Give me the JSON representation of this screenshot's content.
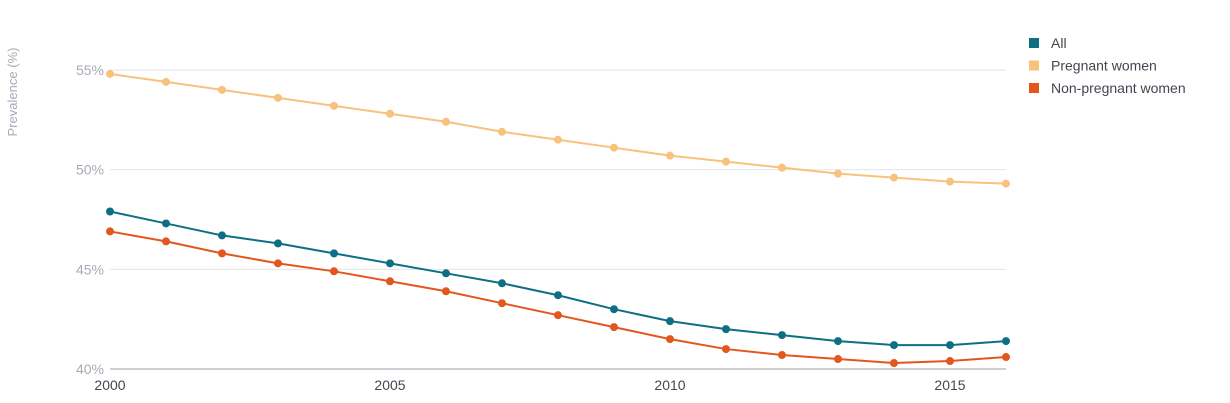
{
  "chart_data": {
    "type": "line",
    "title": "",
    "xlabel": "",
    "ylabel": "Prevalence (%)",
    "x": [
      2000,
      2001,
      2002,
      2003,
      2004,
      2005,
      2006,
      2007,
      2008,
      2009,
      2010,
      2011,
      2012,
      2013,
      2014,
      2015,
      2016
    ],
    "xlim": [
      2000,
      2016
    ],
    "ylim": [
      40,
      56
    ],
    "x_ticks": [
      2000,
      2005,
      2010,
      2015
    ],
    "x_tick_labels": [
      "2000",
      "2005",
      "2010",
      "2015"
    ],
    "y_ticks": [
      40,
      45,
      50,
      55
    ],
    "y_tick_labels": [
      "40%",
      "45%",
      "50%",
      "55%"
    ],
    "grid": true,
    "legend_position": "top-right",
    "series": [
      {
        "name": "All",
        "color": "#0e6f84",
        "values": [
          47.9,
          47.3,
          46.7,
          46.3,
          45.8,
          45.3,
          44.8,
          44.3,
          43.7,
          43.0,
          42.4,
          42.0,
          41.7,
          41.4,
          41.2,
          41.2,
          41.4
        ]
      },
      {
        "name": "Pregnant women",
        "color": "#f8c27c",
        "values": [
          54.8,
          54.4,
          54.0,
          53.6,
          53.2,
          52.8,
          52.4,
          51.9,
          51.5,
          51.1,
          50.7,
          50.4,
          50.1,
          49.8,
          49.6,
          49.4,
          49.3
        ]
      },
      {
        "name": "Non-pregnant women",
        "color": "#e2571e",
        "values": [
          46.9,
          46.4,
          45.8,
          45.3,
          44.9,
          44.4,
          43.9,
          43.3,
          42.7,
          42.1,
          41.5,
          41.0,
          40.7,
          40.5,
          40.3,
          40.4,
          40.6
        ]
      }
    ]
  }
}
